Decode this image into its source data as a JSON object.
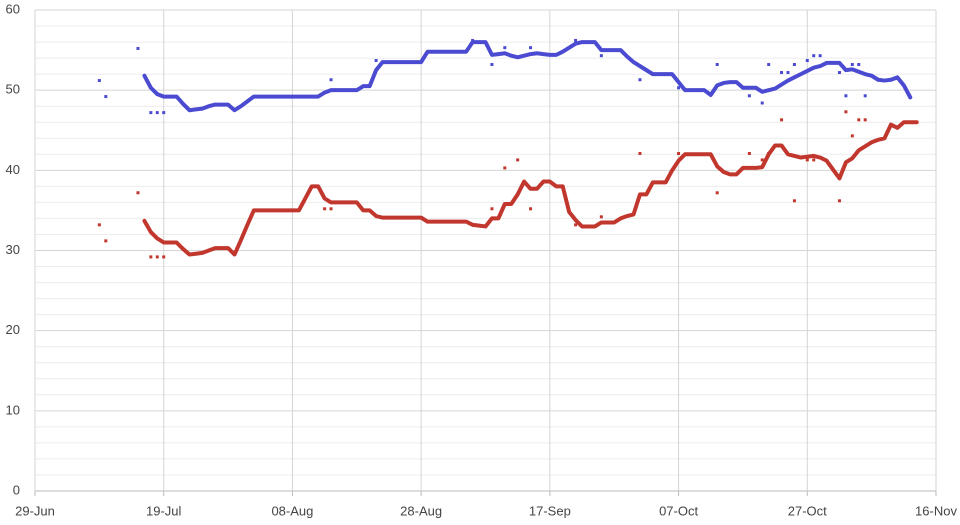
{
  "chart_data": {
    "type": "line",
    "categories": [
      "29-Jun",
      null,
      null,
      null,
      null,
      null,
      null,
      null,
      null,
      null,
      null,
      null,
      null,
      null,
      null,
      null,
      null,
      null,
      null,
      null,
      "19-Jul",
      null,
      null,
      null,
      null,
      null,
      null,
      null,
      null,
      null,
      null,
      null,
      null,
      null,
      null,
      null,
      null,
      null,
      null,
      null,
      "08-Aug",
      null,
      null,
      null,
      null,
      null,
      null,
      null,
      null,
      null,
      null,
      null,
      null,
      null,
      null,
      null,
      null,
      null,
      null,
      null,
      "28-Aug",
      null,
      null,
      null,
      null,
      null,
      null,
      null,
      null,
      null,
      null,
      null,
      null,
      null,
      null,
      null,
      null,
      null,
      null,
      null,
      "17-Sep",
      null,
      null,
      null,
      null,
      null,
      null,
      null,
      null,
      null,
      null,
      null,
      null,
      null,
      null,
      null,
      null,
      null,
      null,
      null,
      "07-Oct",
      null,
      null,
      null,
      null,
      null,
      null,
      null,
      null,
      null,
      null,
      null,
      null,
      null,
      null,
      null,
      null,
      null,
      null,
      null,
      "27-Oct",
      null,
      null,
      null,
      null,
      null,
      null,
      null,
      null,
      null,
      null,
      null,
      null,
      null,
      null,
      null,
      null,
      null,
      null,
      null,
      "16-Nov"
    ],
    "series": [
      {
        "mode": "line",
        "color": "#4b4bd2",
        "values": [
          null,
          null,
          null,
          null,
          null,
          null,
          null,
          null,
          null,
          null,
          null,
          null,
          null,
          null,
          null,
          null,
          null,
          51.8,
          50.3,
          49.5,
          49.2,
          49.2,
          49.2,
          48.3,
          47.5,
          47.6,
          47.7,
          48.0,
          48.2,
          48.2,
          48.2,
          47.5,
          48.0,
          48.6,
          49.2,
          49.2,
          49.2,
          49.2,
          49.2,
          49.2,
          49.2,
          49.2,
          49.2,
          49.2,
          49.2,
          49.7,
          50.0,
          50.0,
          50.0,
          50.0,
          50.0,
          50.5,
          50.5,
          52.5,
          53.5,
          53.5,
          53.5,
          53.5,
          53.5,
          53.5,
          53.5,
          54.8,
          54.8,
          54.8,
          54.8,
          54.8,
          54.8,
          54.8,
          56.0,
          56.0,
          56.0,
          54.4,
          54.5,
          54.6,
          54.3,
          54.1,
          54.3,
          54.5,
          54.6,
          54.5,
          54.4,
          54.4,
          54.8,
          55.3,
          55.8,
          56.0,
          56.0,
          56.0,
          55.0,
          55.0,
          55.0,
          55.0,
          54.2,
          53.5,
          53.0,
          52.5,
          52.0,
          52.0,
          52.0,
          52.0,
          51.0,
          50.0,
          50.0,
          50.0,
          50.0,
          49.4,
          50.6,
          50.9,
          51.0,
          51.0,
          50.3,
          50.3,
          50.3,
          49.8,
          50.0,
          50.2,
          50.7,
          51.2,
          51.6,
          52.0,
          52.4,
          52.8,
          53.0,
          53.4,
          53.4,
          53.4,
          52.5,
          52.6,
          52.3,
          52.0,
          51.8,
          51.3,
          51.2,
          51.3,
          51.6,
          50.6,
          49.1,
          null,
          null,
          null,
          null
        ]
      },
      {
        "mode": "line",
        "color": "#c1362d",
        "values": [
          null,
          null,
          null,
          null,
          null,
          null,
          null,
          null,
          null,
          null,
          null,
          null,
          null,
          null,
          null,
          null,
          null,
          33.7,
          32.3,
          31.5,
          31.0,
          31.0,
          31.0,
          30.2,
          29.5,
          29.6,
          29.7,
          30.0,
          30.3,
          30.3,
          30.3,
          29.5,
          31.3,
          33.2,
          35.0,
          35.0,
          35.0,
          35.0,
          35.0,
          35.0,
          35.0,
          35.0,
          36.5,
          38.0,
          38.0,
          36.5,
          36.0,
          36.0,
          36.0,
          36.0,
          36.0,
          35.0,
          35.0,
          34.3,
          34.1,
          34.1,
          34.1,
          34.1,
          34.1,
          34.1,
          34.1,
          33.6,
          33.6,
          33.6,
          33.6,
          33.6,
          33.6,
          33.6,
          33.2,
          33.1,
          33.0,
          34.0,
          34.0,
          35.8,
          35.8,
          37.0,
          38.6,
          37.7,
          37.7,
          38.6,
          38.6,
          38.0,
          38.0,
          34.8,
          33.8,
          33.0,
          33.0,
          33.0,
          33.5,
          33.5,
          33.5,
          34.0,
          34.3,
          34.5,
          37.0,
          37.0,
          38.5,
          38.5,
          38.5,
          40.0,
          41.2,
          42.0,
          42.0,
          42.0,
          42.0,
          42.0,
          40.5,
          39.8,
          39.5,
          39.5,
          40.3,
          40.3,
          40.3,
          40.4,
          42.0,
          43.1,
          43.1,
          42.0,
          41.8,
          41.6,
          41.7,
          41.8,
          41.6,
          41.2,
          40.1,
          39.0,
          41.0,
          41.5,
          42.5,
          43.0,
          43.5,
          43.8,
          44.0,
          45.7,
          45.3,
          46.0,
          46.0,
          46.0,
          null,
          null,
          null
        ]
      },
      {
        "mode": "points",
        "color": "#4b4bd2",
        "values": [
          null,
          null,
          null,
          null,
          null,
          null,
          null,
          null,
          null,
          null,
          51.2,
          49.2,
          null,
          null,
          null,
          null,
          55.2,
          null,
          47.2,
          47.2,
          47.2,
          null,
          null,
          null,
          null,
          null,
          null,
          null,
          null,
          null,
          null,
          null,
          null,
          null,
          null,
          null,
          null,
          null,
          null,
          null,
          null,
          null,
          null,
          null,
          null,
          null,
          51.3,
          null,
          null,
          null,
          null,
          null,
          null,
          53.7,
          null,
          null,
          null,
          null,
          null,
          null,
          null,
          null,
          null,
          null,
          null,
          null,
          null,
          null,
          56.2,
          null,
          null,
          53.2,
          null,
          55.3,
          null,
          null,
          null,
          55.3,
          null,
          null,
          null,
          null,
          null,
          null,
          56.2,
          null,
          null,
          null,
          54.3,
          null,
          null,
          null,
          null,
          null,
          51.3,
          null,
          null,
          null,
          null,
          null,
          50.3,
          null,
          null,
          null,
          null,
          null,
          53.2,
          null,
          null,
          null,
          null,
          49.3,
          null,
          48.4,
          53.2,
          null,
          52.2,
          52.2,
          53.2,
          null,
          53.7,
          54.3,
          54.3,
          null,
          null,
          52.2,
          49.3,
          53.2,
          53.2,
          49.3,
          null,
          null,
          null,
          null,
          null,
          null,
          null,
          null,
          null,
          null,
          null
        ]
      },
      {
        "mode": "points",
        "color": "#c1362d",
        "values": [
          null,
          null,
          null,
          null,
          null,
          null,
          null,
          null,
          null,
          null,
          33.2,
          31.2,
          null,
          null,
          null,
          null,
          37.2,
          null,
          29.2,
          29.2,
          29.2,
          null,
          null,
          null,
          null,
          null,
          null,
          null,
          null,
          null,
          null,
          null,
          null,
          null,
          null,
          null,
          null,
          null,
          null,
          null,
          null,
          null,
          null,
          null,
          null,
          35.2,
          35.2,
          null,
          null,
          null,
          null,
          null,
          null,
          null,
          null,
          null,
          null,
          null,
          null,
          null,
          null,
          null,
          null,
          null,
          null,
          null,
          null,
          null,
          null,
          null,
          null,
          35.2,
          null,
          40.3,
          null,
          41.3,
          null,
          35.2,
          null,
          null,
          null,
          null,
          null,
          null,
          33.2,
          null,
          null,
          null,
          34.2,
          null,
          null,
          null,
          null,
          null,
          42.1,
          null,
          null,
          null,
          null,
          null,
          42.1,
          null,
          null,
          null,
          null,
          null,
          37.2,
          null,
          null,
          null,
          null,
          42.1,
          null,
          41.3,
          42.1,
          null,
          46.3,
          null,
          36.2,
          null,
          41.3,
          41.3,
          null,
          null,
          null,
          36.2,
          47.3,
          44.3,
          46.3,
          46.3,
          null,
          null,
          null,
          null,
          null,
          null,
          null,
          null,
          null,
          null,
          null
        ]
      }
    ],
    "ylim": [
      0,
      60
    ],
    "yticks": [
      0,
      10,
      20,
      30,
      40,
      50,
      60
    ],
    "minor_yticks": [
      2,
      4,
      6,
      8,
      12,
      14,
      16,
      18,
      22,
      24,
      26,
      28,
      32,
      34,
      36,
      38,
      42,
      44,
      46,
      48,
      52,
      54,
      56,
      58
    ],
    "grid": true
  }
}
